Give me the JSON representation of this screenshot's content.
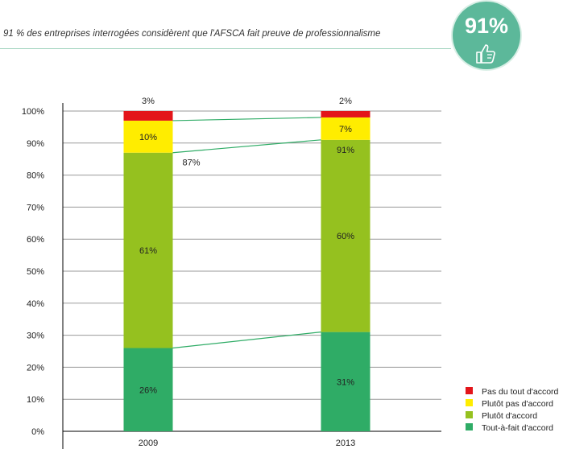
{
  "header": {
    "title": "91 % des entreprises interrogées considèrent que l'AFSCA fait preuve de professionnalisme",
    "badge_value": "91%",
    "badge_icon": "thumbs-up-icon"
  },
  "colors": {
    "pas_du_tout": "#e3151a",
    "plutot_pas": "#ffed00",
    "plutot": "#95c11f",
    "tout_a_fait": "#2fac66",
    "connector": "#2fac66",
    "badge": "#5cb89a"
  },
  "chart_data": {
    "type": "bar",
    "stacked": true,
    "categories": [
      "2009",
      "2013"
    ],
    "ylim": [
      0,
      100
    ],
    "yticks": [
      "0%",
      "10%",
      "20%",
      "30%",
      "40%",
      "50%",
      "60%",
      "70%",
      "80%",
      "90%",
      "100%"
    ],
    "grid": true,
    "legend_position": "bottom-right",
    "series": [
      {
        "name": "Tout-à-fait d'accord",
        "color_key": "tout_a_fait",
        "values": [
          26,
          31
        ],
        "labels": [
          "26%",
          "31%"
        ]
      },
      {
        "name": "Plutôt d'accord",
        "color_key": "plutot",
        "values": [
          61,
          60
        ],
        "labels": [
          "61%",
          "60%"
        ]
      },
      {
        "name": "Plutôt pas d'accord",
        "color_key": "plutot_pas",
        "values": [
          10,
          7
        ],
        "labels": [
          "10%",
          "7%"
        ]
      },
      {
        "name": "Pas du tout d'accord",
        "color_key": "pas_du_tout",
        "values": [
          3,
          2
        ],
        "labels": [
          "3%",
          "2%"
        ]
      }
    ],
    "annotations": [
      {
        "category": "2009",
        "text": "87%",
        "value": 87
      },
      {
        "category": "2013",
        "text": "91%",
        "value": 91
      }
    ]
  }
}
